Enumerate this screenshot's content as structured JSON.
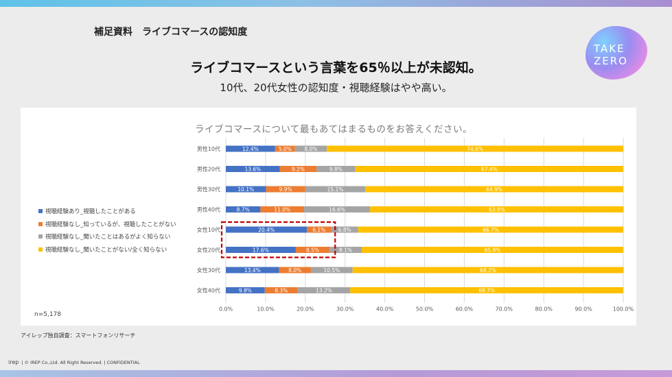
{
  "header": {
    "section_title": "補足資料　ライブコマースの認知度",
    "headline": "ライブコマースという言葉を65％以上が未認知。",
    "subheadline": "10代、20代女性の認知度・視聴経験はやや高い。",
    "logo_lines": [
      "TAKE",
      "ZERO"
    ]
  },
  "colors": {
    "watched": "#4472c4",
    "know_not_watched": "#ed7d31",
    "heard_unknown": "#a5a5a5",
    "never_heard": "#ffc000",
    "highlight": "#c00000"
  },
  "chart_data": {
    "type": "bar",
    "orientation": "horizontal",
    "stacked": true,
    "title": "ライブコマースについて最もあてはまるものをお答えください。",
    "categories": [
      "男性10代",
      "男性20代",
      "男性30代",
      "男性40代",
      "女性10代",
      "女性20代",
      "女性30代",
      "女性40代"
    ],
    "series": [
      {
        "name": "視聴経験あり_視聴したことがある",
        "color": "#4472c4",
        "values": [
          12.4,
          13.6,
          10.1,
          8.7,
          20.4,
          17.6,
          13.4,
          9.8
        ]
      },
      {
        "name": "視聴経験なし_知っているが、視聴したことがない",
        "color": "#ed7d31",
        "values": [
          5.0,
          9.2,
          9.9,
          11.0,
          6.1,
          8.5,
          8.0,
          8.3
        ]
      },
      {
        "name": "視聴経験なし_聞いたことはあるがよく知らない",
        "color": "#a5a5a5",
        "values": [
          8.0,
          9.8,
          15.1,
          16.6,
          6.8,
          8.1,
          10.5,
          13.2
        ]
      },
      {
        "name": "視聴経験なし_聞いたことがない/全く知らない",
        "color": "#ffc000",
        "values": [
          74.6,
          67.4,
          64.9,
          63.8,
          66.7,
          65.8,
          68.2,
          68.7
        ]
      }
    ],
    "xlim": [
      0,
      100
    ],
    "xticks": [
      "0.0%",
      "10.0%",
      "20.0%",
      "30.0%",
      "40.0%",
      "50.0%",
      "60.0%",
      "70.0%",
      "80.0%",
      "90.0%",
      "100.0%"
    ],
    "value_format": "%",
    "grid": true,
    "legend_position": "left",
    "highlight_categories": [
      "女性10代",
      "女性20代"
    ],
    "highlight_range": [
      0,
      27.5
    ],
    "note": "n=5,178"
  },
  "footer": {
    "source": "アイレップ独自調査：スマートフォンリサーチ",
    "brand": "irep",
    "copyright": "| © IREP Co.,Ltd. All Right Reserved. | CONFIDENTIAL"
  }
}
